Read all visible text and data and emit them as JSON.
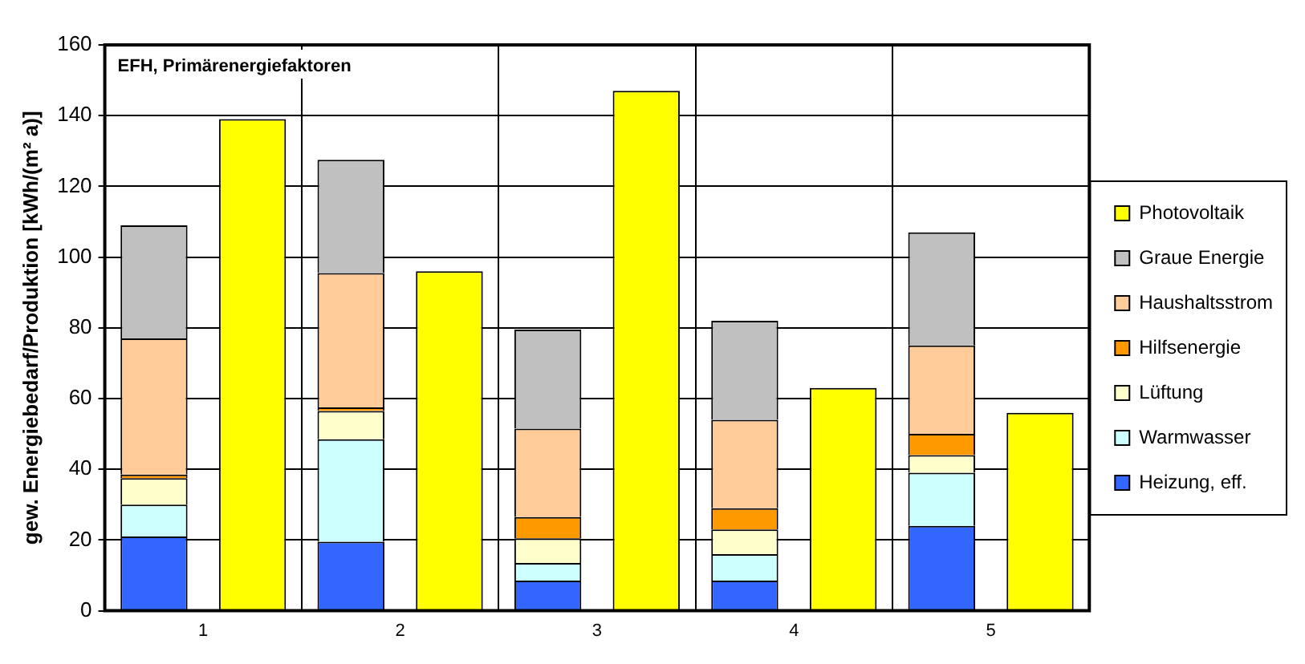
{
  "chart_data": {
    "type": "bar",
    "stacked": true,
    "title": "EFH, Primärenergiefaktoren",
    "ylabel": "gew. Energiebedarf/Produktion [kWh/(m² a)]",
    "categories": [
      "1",
      null,
      "2",
      null,
      "3",
      null,
      "4",
      null,
      "5",
      null
    ],
    "series": [
      {
        "name": "Heizung, eff.",
        "color": "#3366ff",
        "values": [
          21,
          null,
          19.5,
          null,
          8.5,
          null,
          8.5,
          null,
          24,
          null
        ]
      },
      {
        "name": "Warmwasser",
        "color": "#ccffff",
        "values": [
          9,
          null,
          29,
          null,
          5,
          null,
          7.5,
          null,
          15,
          null
        ]
      },
      {
        "name": "Lüftung",
        "color": "#ffffcc",
        "values": [
          7.5,
          null,
          8,
          null,
          7,
          null,
          7,
          null,
          5,
          null
        ]
      },
      {
        "name": "Hilfsenergie",
        "color": "#ff9900",
        "values": [
          1,
          null,
          1,
          null,
          6,
          null,
          6,
          null,
          6,
          null
        ]
      },
      {
        "name": "Haushaltsstrom",
        "color": "#ffcc99",
        "values": [
          38.5,
          null,
          38,
          null,
          25,
          null,
          25,
          null,
          25,
          null
        ]
      },
      {
        "name": "Graue Energie",
        "color": "#c0c0c0",
        "values": [
          32,
          null,
          32,
          null,
          28,
          null,
          28,
          null,
          32,
          null
        ]
      },
      {
        "name": "Photovoltaik",
        "color": "#ffff00",
        "values": [
          null,
          139,
          null,
          96,
          null,
          147,
          null,
          63,
          null,
          56
        ]
      }
    ],
    "ylim": [
      0,
      160
    ],
    "yticks": [
      0,
      20,
      40,
      60,
      80,
      100,
      120,
      140,
      160
    ],
    "grid": true,
    "legend": "right"
  }
}
